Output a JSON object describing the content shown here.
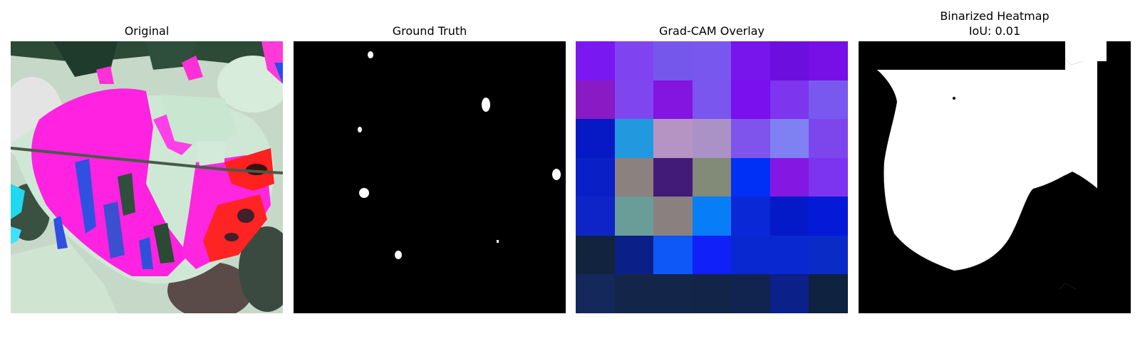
{
  "panels": [
    {
      "title": "Original"
    },
    {
      "title": "Ground Truth"
    },
    {
      "title": "Grad-CAM Overlay"
    },
    {
      "title": "Binarized Heatmap",
      "subtitle": "IoU: 0.01"
    }
  ],
  "colors": {
    "mask_foreground": "#ffffff",
    "mask_background": "#000000",
    "leaf_magenta": "#ff22e0",
    "leaf_pale_green": "#cfe8d6",
    "leaf_red": "#ff2020"
  },
  "gradcam_grid": [
    [
      "#7a18f2",
      "#7f44f0",
      "#7657ec",
      "#7757ee",
      "#7814ec",
      "#6c0ede",
      "#7610e6"
    ],
    [
      "#8a1ac4",
      "#7f46f0",
      "#8414e0",
      "#7a55ee",
      "#7a10ee",
      "#7d35ee",
      "#7858ee"
    ],
    [
      "#0619c4",
      "#2298de",
      "#b594c4",
      "#ab92c6",
      "#7f54ec",
      "#7f80f2",
      "#7d46ec"
    ],
    [
      "#0a1fc6",
      "#8b8280",
      "#421a78",
      "#828a78",
      "#0030f6",
      "#8418e2",
      "#7d34f0"
    ],
    [
      "#0e24c6",
      "#6a9c98",
      "#8b8080",
      "#087df8",
      "#0a28d6",
      "#041ac8",
      "#041ad8"
    ],
    [
      "#12233e",
      "#0a2088",
      "#0e58f8",
      "#1020f8",
      "#0a28d0",
      "#0a28d0",
      "#0a2bc6"
    ],
    [
      "#14285c",
      "#13264a",
      "#13264a",
      "#122448",
      "#112450",
      "#0b2088",
      "#0f2240"
    ]
  ]
}
